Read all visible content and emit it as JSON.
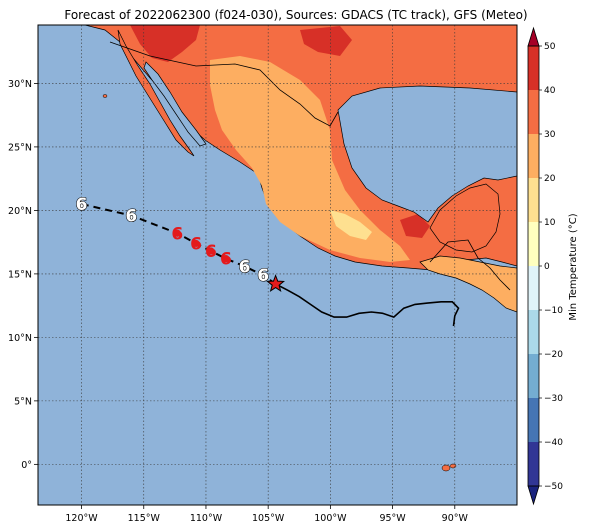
{
  "title": "Forecast of 2022062300 (f024-030), Sources: GDACS (TC track), GFS (Meteo)",
  "map": {
    "lon_range": [
      -123.5,
      -85.0
    ],
    "lat_range": [
      -3.2,
      34.6
    ],
    "ocean_color": "#8fb3d9",
    "gridlines": true,
    "lon_ticks": [
      {
        "value": -120,
        "label": "120°W"
      },
      {
        "value": -115,
        "label": "115°W"
      },
      {
        "value": -110,
        "label": "110°W"
      },
      {
        "value": -105,
        "label": "105°W"
      },
      {
        "value": -100,
        "label": "100°W"
      },
      {
        "value": -95,
        "label": "95°W"
      },
      {
        "value": -90,
        "label": "90°W"
      }
    ],
    "lat_ticks": [
      {
        "value": 30,
        "label": "30°N"
      },
      {
        "value": 25,
        "label": "25°N"
      },
      {
        "value": 20,
        "label": "20°N"
      },
      {
        "value": 15,
        "label": "15°N"
      },
      {
        "value": 10,
        "label": "10°N"
      },
      {
        "value": 5,
        "label": "5°N"
      },
      {
        "value": 0,
        "label": "0°"
      }
    ]
  },
  "colorbar": {
    "label": "Min Temperature (°C)",
    "min": -50,
    "max": 50,
    "step": 10,
    "tick_labels": [
      "50",
      "40",
      "30",
      "20",
      "10",
      "0",
      "−10",
      "−20",
      "−30",
      "−40",
      "−50"
    ],
    "colors": [
      "#313695",
      "#4575b4",
      "#74add1",
      "#abd9e9",
      "#e0f3f8",
      "#ffffbf",
      "#fee090",
      "#fdae61",
      "#f46d43",
      "#d73027",
      "#a50026"
    ]
  },
  "storm": {
    "marker_symbol": "6",
    "current_position": {
      "lon": -104.4,
      "lat": 14.2,
      "color": "#e41a1c"
    },
    "past_track_color": "#000000",
    "forecast_track_color": "#000000",
    "forecast_positions": [
      {
        "lon": -120.0,
        "lat": 20.5,
        "style": "white"
      },
      {
        "lon": -116.0,
        "lat": 19.6,
        "style": "white"
      },
      {
        "lon": -112.3,
        "lat": 18.2,
        "style": "red"
      },
      {
        "lon": -110.8,
        "lat": 17.4,
        "style": "red"
      },
      {
        "lon": -109.6,
        "lat": 16.8,
        "style": "red"
      },
      {
        "lon": -108.4,
        "lat": 16.2,
        "style": "red"
      },
      {
        "lon": -106.9,
        "lat": 15.6,
        "style": "white"
      },
      {
        "lon": -105.4,
        "lat": 14.9,
        "style": "white"
      }
    ],
    "past_track": [
      [
        -104.4,
        14.2
      ],
      [
        -103.4,
        13.7
      ],
      [
        -102.5,
        13.2
      ],
      [
        -101.6,
        12.6
      ],
      [
        -100.7,
        12.0
      ],
      [
        -99.7,
        11.6
      ],
      [
        -98.7,
        11.6
      ],
      [
        -97.7,
        11.9
      ],
      [
        -96.7,
        12.0
      ],
      [
        -95.8,
        11.9
      ],
      [
        -94.9,
        11.6
      ],
      [
        -94.1,
        12.3
      ],
      [
        -93.2,
        12.6
      ],
      [
        -92.2,
        12.7
      ],
      [
        -91.1,
        12.8
      ],
      [
        -90.2,
        12.8
      ],
      [
        -89.7,
        12.3
      ],
      [
        -90.0,
        11.7
      ],
      [
        -90.1,
        10.9
      ]
    ]
  },
  "legend_colors": {
    "land_warm": "#f46d43",
    "land_mild": "#fdae61",
    "land_cool": "#fee090",
    "land_hot": "#d73027"
  }
}
